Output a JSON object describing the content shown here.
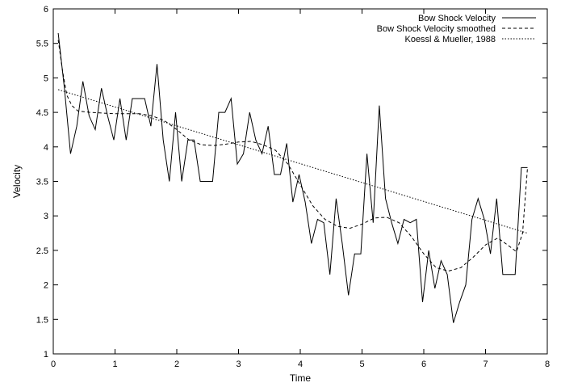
{
  "chart_data": {
    "type": "line",
    "title": "",
    "xlabel": "Time",
    "ylabel": "Velocity",
    "xlim": [
      0,
      8
    ],
    "ylim": [
      1,
      6
    ],
    "xticks": [
      0,
      1,
      2,
      3,
      4,
      5,
      6,
      7,
      8
    ],
    "yticks": [
      1,
      1.5,
      2,
      2.5,
      3,
      3.5,
      4,
      4.5,
      5,
      5.5,
      6
    ],
    "xtick_labels": [
      "0",
      "1",
      "2",
      "3",
      "4",
      "5",
      "6",
      "7",
      "8"
    ],
    "ytick_labels": [
      "1",
      "1.5",
      "2",
      "2.5",
      "3",
      "3.5",
      "4",
      "4.5",
      "5",
      "5.5",
      "6"
    ],
    "grid": false,
    "legend_position": "top-right",
    "series": [
      {
        "name": "Bow Shock Velocity",
        "style": "solid",
        "x": [
          0.08,
          0.18,
          0.28,
          0.38,
          0.48,
          0.58,
          0.68,
          0.78,
          0.88,
          0.98,
          1.08,
          1.18,
          1.28,
          1.38,
          1.48,
          1.58,
          1.68,
          1.78,
          1.88,
          1.98,
          2.08,
          2.18,
          2.28,
          2.38,
          2.48,
          2.58,
          2.68,
          2.78,
          2.88,
          2.98,
          3.08,
          3.18,
          3.28,
          3.38,
          3.48,
          3.58,
          3.68,
          3.78,
          3.88,
          3.98,
          4.08,
          4.18,
          4.28,
          4.38,
          4.48,
          4.58,
          4.68,
          4.78,
          4.88,
          4.98,
          5.08,
          5.18,
          5.28,
          5.38,
          5.48,
          5.58,
          5.68,
          5.78,
          5.88,
          5.98,
          6.08,
          6.18,
          6.28,
          6.38,
          6.48,
          6.58,
          6.68,
          6.78,
          6.88,
          6.98,
          7.08,
          7.18,
          7.28,
          7.38,
          7.48,
          7.58,
          7.68
        ],
        "values": [
          5.65,
          4.85,
          3.9,
          4.3,
          4.95,
          4.45,
          4.25,
          4.85,
          4.45,
          4.1,
          4.7,
          4.1,
          4.7,
          4.7,
          4.7,
          4.3,
          5.2,
          4.1,
          3.5,
          4.5,
          3.5,
          4.1,
          4.1,
          3.5,
          3.5,
          3.5,
          4.5,
          4.5,
          4.7,
          3.75,
          3.9,
          4.5,
          4.1,
          3.9,
          4.3,
          3.6,
          3.6,
          4.05,
          3.2,
          3.6,
          3.2,
          2.6,
          2.95,
          2.9,
          2.15,
          3.25,
          2.6,
          1.85,
          2.45,
          2.45,
          3.9,
          2.9,
          4.6,
          3.25,
          2.9,
          2.6,
          2.95,
          2.9,
          2.95,
          1.75,
          2.5,
          1.95,
          2.35,
          2.15,
          1.45,
          1.75,
          2.0,
          2.95,
          3.25,
          2.95,
          2.45,
          3.25,
          2.15,
          2.15,
          2.15,
          3.7,
          3.7
        ]
      },
      {
        "name": "Bow Shock Velocity smoothed",
        "style": "dashed",
        "x": [
          0.08,
          0.15,
          0.22,
          0.3,
          0.4,
          0.6,
          0.8,
          1.0,
          1.2,
          1.4,
          1.6,
          1.8,
          2.0,
          2.2,
          2.4,
          2.6,
          2.8,
          3.0,
          3.2,
          3.4,
          3.6,
          3.8,
          4.0,
          4.2,
          4.4,
          4.6,
          4.8,
          5.0,
          5.2,
          5.4,
          5.6,
          5.8,
          6.0,
          6.2,
          6.4,
          6.6,
          6.8,
          7.0,
          7.2,
          7.4,
          7.5,
          7.6,
          7.68
        ],
        "values": [
          5.55,
          5.1,
          4.75,
          4.6,
          4.52,
          4.5,
          4.49,
          4.48,
          4.48,
          4.48,
          4.45,
          4.38,
          4.25,
          4.1,
          4.03,
          4.02,
          4.04,
          4.07,
          4.08,
          4.03,
          3.95,
          3.75,
          3.45,
          3.15,
          2.95,
          2.85,
          2.82,
          2.88,
          2.97,
          2.98,
          2.9,
          2.7,
          2.45,
          2.25,
          2.2,
          2.25,
          2.4,
          2.58,
          2.68,
          2.55,
          2.48,
          2.75,
          3.7
        ]
      },
      {
        "name": "Koessl & Mueller, 1988",
        "style": "dotted",
        "x": [
          0.08,
          7.68
        ],
        "values": [
          4.83,
          2.75
        ]
      }
    ]
  }
}
